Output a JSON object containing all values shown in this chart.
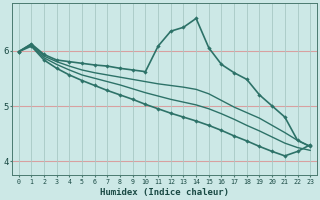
{
  "xlabel": "Humidex (Indice chaleur)",
  "bg_color": "#cce8e6",
  "line_color": "#2d7268",
  "hgrid_color": "#d8a0a0",
  "vgrid_color": "#a8c8c4",
  "xlim": [
    -0.5,
    23.5
  ],
  "ylim": [
    3.75,
    6.85
  ],
  "yticks": [
    4,
    5,
    6
  ],
  "xticks": [
    0,
    1,
    2,
    3,
    4,
    5,
    6,
    7,
    8,
    9,
    10,
    11,
    12,
    13,
    14,
    15,
    16,
    17,
    18,
    19,
    20,
    21,
    22,
    23
  ],
  "series": [
    {
      "x": [
        0,
        1,
        2,
        3,
        4,
        5,
        6,
        7,
        8,
        9,
        10,
        11,
        12,
        13,
        14,
        15,
        16,
        17,
        18,
        19,
        20,
        21,
        22,
        23
      ],
      "y": [
        5.98,
        6.12,
        5.93,
        5.83,
        5.8,
        5.77,
        5.74,
        5.72,
        5.68,
        5.65,
        5.62,
        6.08,
        6.35,
        6.42,
        6.58,
        6.05,
        5.75,
        5.6,
        5.48,
        5.2,
        5.0,
        4.8,
        4.38,
        4.27
      ],
      "marker": true,
      "lw": 1.2
    },
    {
      "x": [
        0,
        1,
        2,
        3,
        4,
        5,
        6,
        7,
        8,
        9,
        10,
        11,
        12,
        13,
        14,
        15,
        16,
        17,
        18,
        19,
        20,
        21,
        22,
        23
      ],
      "y": [
        5.98,
        6.12,
        5.9,
        5.8,
        5.72,
        5.65,
        5.6,
        5.56,
        5.52,
        5.48,
        5.44,
        5.4,
        5.37,
        5.34,
        5.3,
        5.22,
        5.1,
        4.98,
        4.88,
        4.78,
        4.65,
        4.52,
        4.38,
        4.27
      ],
      "marker": false,
      "lw": 1.0
    },
    {
      "x": [
        0,
        1,
        2,
        3,
        4,
        5,
        6,
        7,
        8,
        9,
        10,
        11,
        12,
        13,
        14,
        15,
        16,
        17,
        18,
        19,
        20,
        21,
        22,
        23
      ],
      "y": [
        5.98,
        6.1,
        5.87,
        5.75,
        5.65,
        5.56,
        5.5,
        5.44,
        5.38,
        5.31,
        5.24,
        5.18,
        5.12,
        5.07,
        5.02,
        4.95,
        4.86,
        4.76,
        4.65,
        4.55,
        4.44,
        4.33,
        4.25,
        4.2
      ],
      "marker": false,
      "lw": 1.0
    },
    {
      "x": [
        0,
        1,
        2,
        3,
        4,
        5,
        6,
        7,
        8,
        9,
        10,
        11,
        12,
        13,
        14,
        15,
        16,
        17,
        18,
        19,
        20,
        21,
        22,
        23
      ],
      "y": [
        5.98,
        6.08,
        5.83,
        5.68,
        5.56,
        5.46,
        5.37,
        5.28,
        5.2,
        5.12,
        5.03,
        4.95,
        4.87,
        4.8,
        4.73,
        4.65,
        4.56,
        4.46,
        4.37,
        4.27,
        4.18,
        4.1,
        4.18,
        4.3
      ],
      "marker": true,
      "lw": 1.2
    }
  ]
}
